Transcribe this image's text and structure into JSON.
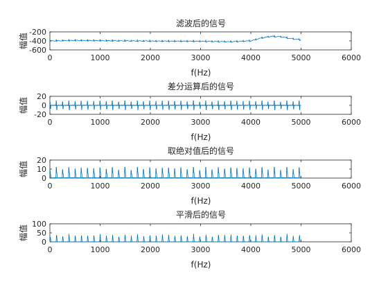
{
  "figure": {
    "background": "#ffffff",
    "series_color": "#0072BD",
    "axis_color": "#262626"
  },
  "chart_data": [
    {
      "type": "line",
      "title": "滤波后的信号",
      "xlabel": "f(Hz)",
      "ylabel": "幅值",
      "xlim": [
        0,
        6000
      ],
      "ylim": [
        -600,
        -200
      ],
      "xticks": [
        0,
        1000,
        2000,
        3000,
        4000,
        5000,
        6000
      ],
      "yticks": [
        -200,
        -400,
        -600
      ],
      "grid": false,
      "signal": {
        "x_range": [
          0,
          5000
        ],
        "shape": "baseline with small periodic spikes",
        "baseline_points": [
          [
            0,
            -400
          ],
          [
            500,
            -390
          ],
          [
            1000,
            -395
          ],
          [
            2000,
            -405
          ],
          [
            3000,
            -410
          ],
          [
            3600,
            -420
          ],
          [
            4000,
            -400
          ],
          [
            4200,
            -340
          ],
          [
            4400,
            -300
          ],
          [
            4600,
            -310
          ],
          [
            4800,
            -350
          ],
          [
            5000,
            -380
          ]
        ],
        "spike_period": 124,
        "spike_amplitude": 40
      }
    },
    {
      "type": "line",
      "title": "差分运算后的信号",
      "xlabel": "f(Hz)",
      "ylabel": "幅值",
      "xlim": [
        0,
        6000
      ],
      "ylim": [
        -20,
        20
      ],
      "xticks": [
        0,
        1000,
        2000,
        3000,
        4000,
        5000,
        6000
      ],
      "yticks": [
        20,
        0,
        -20
      ],
      "grid": false,
      "signal": {
        "x_range": [
          0,
          5000
        ],
        "shape": "zero baseline with symmetric bipolar spikes",
        "baseline_points": [
          [
            0,
            0
          ],
          [
            5000,
            0
          ]
        ],
        "spike_period": 124,
        "spike_amplitude": 10
      }
    },
    {
      "type": "line",
      "title": "取绝对值后的信号",
      "xlabel": "f(Hz)",
      "ylabel": "幅值",
      "xlim": [
        0,
        6000
      ],
      "ylim": [
        0,
        20
      ],
      "xticks": [
        0,
        1000,
        2000,
        3000,
        4000,
        5000,
        6000
      ],
      "yticks": [
        20,
        10,
        0
      ],
      "grid": false,
      "signal": {
        "x_range": [
          0,
          5000
        ],
        "shape": "zero baseline with positive spikes",
        "baseline_points": [
          [
            0,
            0
          ],
          [
            5000,
            0
          ]
        ],
        "spike_period": 124,
        "spike_amplitude": 12
      }
    },
    {
      "type": "line",
      "title": "平滑后的信号",
      "xlabel": "f(Hz)",
      "ylabel": "幅值",
      "xlim": [
        0,
        6000
      ],
      "ylim": [
        0,
        100
      ],
      "xticks": [
        0,
        1000,
        2000,
        3000,
        4000,
        5000,
        6000
      ],
      "yticks": [
        100,
        50,
        0
      ],
      "grid": false,
      "signal": {
        "x_range": [
          0,
          5000
        ],
        "shape": "zero baseline with smoothed positive spikes",
        "baseline_points": [
          [
            0,
            0
          ],
          [
            5000,
            0
          ]
        ],
        "spike_period": 124,
        "spike_amplitude": 45
      }
    }
  ]
}
